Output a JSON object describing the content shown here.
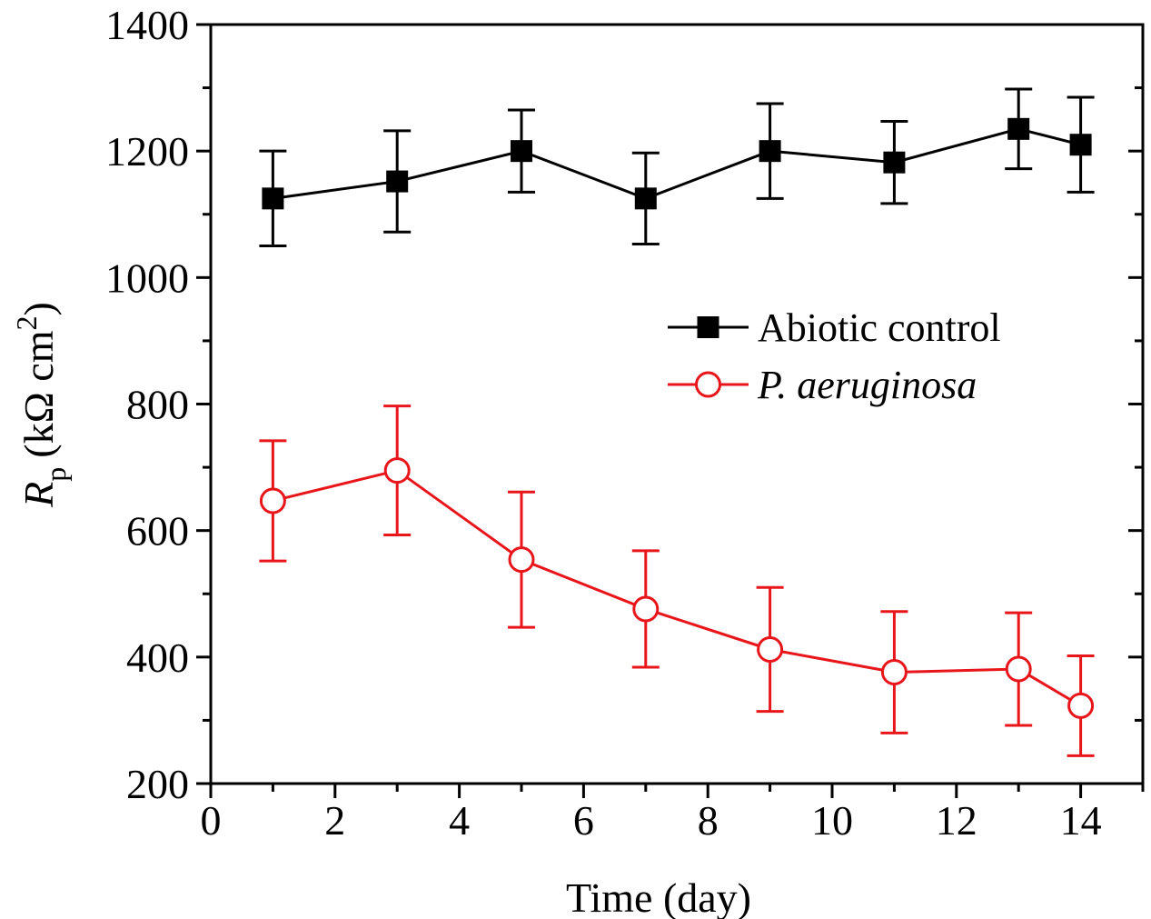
{
  "chart_data": {
    "type": "line",
    "title": "",
    "xlabel": "Time (day)",
    "ylabel_main": "R",
    "ylabel_sub": "p",
    "ylabel_units": "(kΩ cm",
    "ylabel_sup": "2",
    "ylabel_close": ")",
    "xlim": [
      0,
      15
    ],
    "ylim": [
      200,
      1400
    ],
    "xticks": [
      0,
      2,
      4,
      6,
      8,
      10,
      12,
      14
    ],
    "yticks": [
      200,
      400,
      600,
      800,
      1000,
      1200,
      1400
    ],
    "legend_position": "upper-right",
    "series": [
      {
        "name": "Abiotic control",
        "italic": false,
        "color": "#000000",
        "marker": "filled-square",
        "x": [
          1,
          3,
          5,
          7,
          9,
          11,
          13,
          14
        ],
        "y": [
          1125,
          1152,
          1200,
          1125,
          1200,
          1182,
          1235,
          1210
        ],
        "err": [
          75,
          80,
          65,
          72,
          75,
          65,
          63,
          75
        ]
      },
      {
        "name": "P. aeruginosa",
        "italic": true,
        "color": "#e8161b",
        "marker": "open-circle",
        "x": [
          1,
          3,
          5,
          7,
          9,
          11,
          13,
          14
        ],
        "y": [
          647,
          695,
          554,
          476,
          412,
          376,
          381,
          323
        ],
        "err": [
          95,
          102,
          107,
          92,
          98,
          96,
          89,
          79
        ]
      }
    ]
  }
}
